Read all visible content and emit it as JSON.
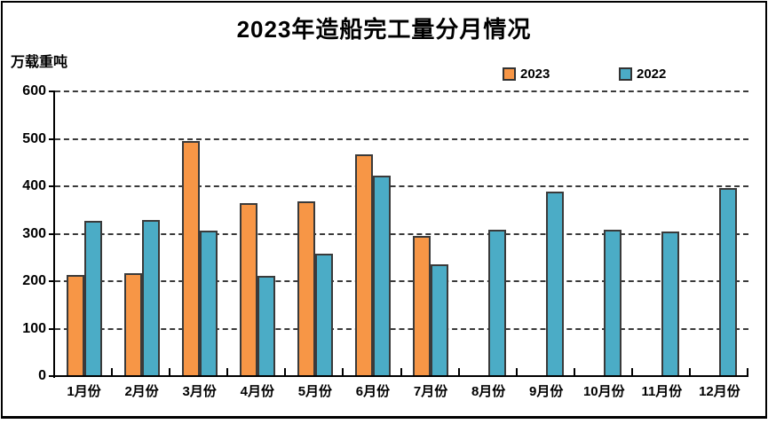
{
  "chart_data": {
    "type": "bar",
    "title": "2023年造船完工量分月情况",
    "ylabel": "万载重吨",
    "xlabel": "",
    "categories": [
      "1月份",
      "2月份",
      "3月份",
      "4月份",
      "5月份",
      "6月份",
      "7月份",
      "8月份",
      "9月份",
      "10月份",
      "11月份",
      "12月份"
    ],
    "series": [
      {
        "name": "2023",
        "color": "#F79646",
        "values": [
          211,
          215,
          494,
          362,
          367,
          465,
          293,
          null,
          null,
          null,
          null,
          null
        ]
      },
      {
        "name": "2022",
        "color": "#4BACC6",
        "values": [
          325,
          327,
          305,
          210,
          257,
          421,
          234,
          307,
          386,
          307,
          303,
          395
        ]
      }
    ],
    "ylim": [
      0,
      600
    ],
    "ytick_interval": 100,
    "grid": "horizontal-dashed",
    "legend_position": "top-right",
    "bar_border_color": "#3a3a3a",
    "axis_color": "#000000"
  }
}
